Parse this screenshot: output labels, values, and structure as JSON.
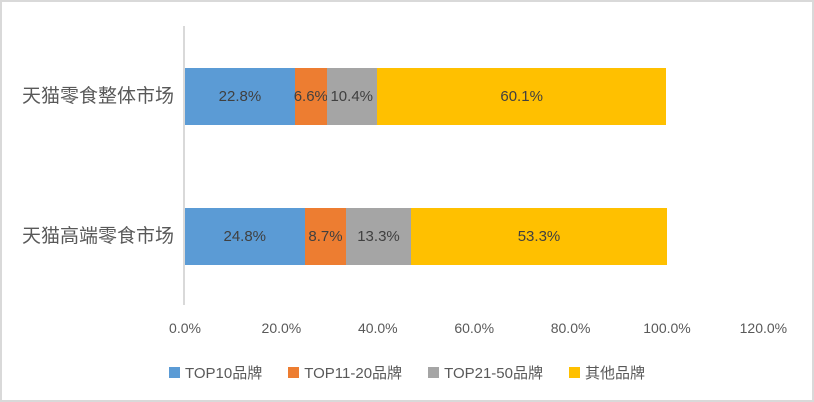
{
  "chart_data": {
    "type": "bar",
    "orientation": "horizontal",
    "stacked": true,
    "title": "",
    "xlabel": "",
    "ylabel": "",
    "grid": false,
    "legend_position": "bottom",
    "categories": [
      "天猫零食整体市场",
      "天猫高端零食市场"
    ],
    "series": [
      {
        "name": "TOP10品牌",
        "color": "#5B9BD5",
        "values": [
          22.8,
          24.8
        ],
        "labels": [
          "22.8%",
          "24.8%"
        ]
      },
      {
        "name": "TOP11-20品牌",
        "color": "#ED7D31",
        "values": [
          6.6,
          8.7
        ],
        "labels": [
          "6.6%",
          "8.7%"
        ]
      },
      {
        "name": "TOP21-50品牌",
        "color": "#A5A5A5",
        "values": [
          10.4,
          13.3
        ],
        "labels": [
          "10.4%",
          "13.3%"
        ]
      },
      {
        "name": "其他品牌",
        "color": "#FFC000",
        "values": [
          60.1,
          53.3
        ],
        "labels": [
          "60.1%",
          "53.3%"
        ]
      }
    ],
    "x_axis": {
      "tick_labels": [
        "0.0%",
        "20.0%",
        "40.0%",
        "60.0%",
        "80.0%",
        "100.0%",
        "120.0%"
      ],
      "tick_values": [
        0,
        20,
        40,
        60,
        80,
        100,
        120
      ],
      "min": 0,
      "max": 120
    }
  },
  "colors": {
    "axis_line": "#d9d9d9",
    "border": "#d9d9d9",
    "data_label_text": "#404040",
    "tick_text": "#595959",
    "category_text": "#595959",
    "legend_text": "#595959",
    "background": "#ffffff"
  }
}
